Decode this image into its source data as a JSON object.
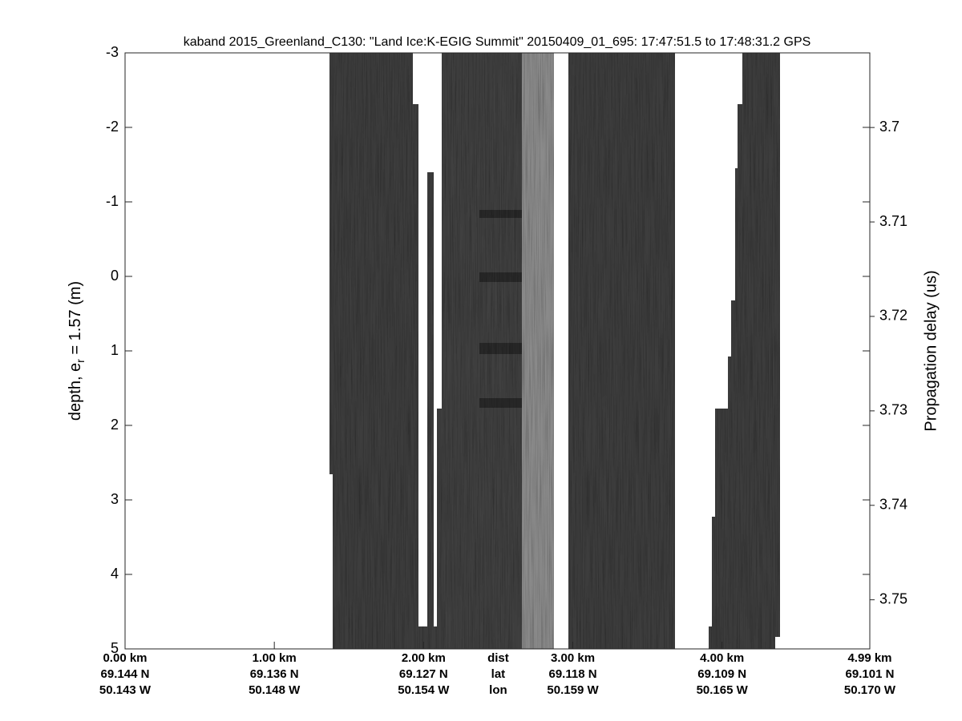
{
  "chart_data": {
    "type": "echogram",
    "title": "kaband 2015_Greenland_C130: \"Land Ice:K-EGIG Summit\"  20150409_01_695: 17:47:51.5 to 17:48:31.2 GPS",
    "ylabel": [
      "depth, e",
      "r",
      " = 1.57 (m)"
    ],
    "y2label": "Propagation delay (us)",
    "ylim": [
      -3,
      5
    ],
    "yticks": [
      -3,
      -2,
      -1,
      0,
      1,
      2,
      3,
      4,
      5
    ],
    "y2lim": [
      3.6921,
      3.7552
    ],
    "y2ticks": [
      3.7,
      3.71,
      3.72,
      3.73,
      3.74,
      3.75
    ],
    "xlim": [
      0,
      4.99
    ],
    "xticks": [
      {
        "value": 0,
        "label": "0.00 km"
      },
      {
        "value": 1,
        "label": "1.00 km"
      },
      {
        "value": 2,
        "label": "2.00 km"
      },
      {
        "value": 3,
        "label": "3.00 km"
      },
      {
        "value": 4,
        "label": "4.00 km"
      },
      {
        "value": 4.99,
        "label": "4.99 km"
      }
    ],
    "lat_labels": [
      "69.144 N",
      "69.136 N",
      "69.127 N",
      "69.118 N",
      "69.109 N",
      "69.101 N"
    ],
    "lon_labels": [
      "50.143 W",
      "50.148 W",
      "50.154 W",
      "50.159 W",
      "50.165 W",
      "50.170 W"
    ],
    "row_names": [
      "dist",
      "lat",
      "lon"
    ]
  }
}
